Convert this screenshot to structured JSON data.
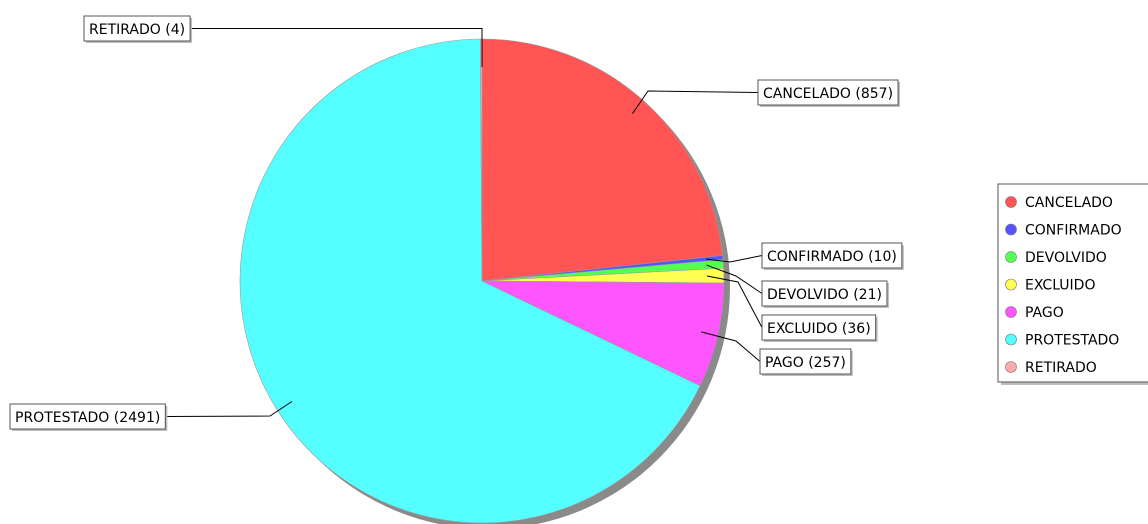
{
  "chart_data": {
    "type": "pie",
    "title": "",
    "categories": [
      "CANCELADO",
      "CONFIRMADO",
      "DEVOLVIDO",
      "EXCLUIDO",
      "PAGO",
      "PROTESTADO",
      "RETIRADO"
    ],
    "values": [
      857,
      10,
      21,
      36,
      257,
      2491,
      4
    ],
    "colors": [
      "#ff5555",
      "#5555ff",
      "#55ff55",
      "#ffff55",
      "#ff55ff",
      "#55ffff",
      "#ffaaaa"
    ],
    "slice_labels": [
      "CANCELADO (857)",
      "CONFIRMADO (10)",
      "DEVOLVIDO (21)",
      "EXCLUIDO (36)",
      "PAGO (257)",
      "PROTESTADO (2491)",
      "RETIRADO (4)"
    ],
    "legend": {
      "placement": "right",
      "entries": [
        "CANCELADO",
        "CONFIRMADO",
        "DEVOLVIDO",
        "EXCLUIDO",
        "PAGO",
        "PROTESTADO",
        "RETIRADO"
      ]
    },
    "start_angle": "top (12 o'clock)",
    "direction": "clockwise"
  }
}
